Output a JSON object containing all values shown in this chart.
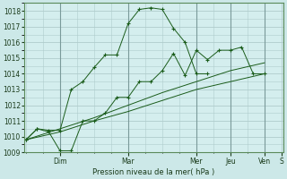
{
  "xlabel": "Pression niveau de la mer( hPa )",
  "background_color": "#cce8e8",
  "plot_bg_color": "#d4eeee",
  "grid_color": "#b0cccc",
  "line_color": "#1a5c1a",
  "ylim": [
    1009,
    1018.5
  ],
  "xlim": [
    -0.05,
    7.55
  ],
  "series": {
    "line1_x": [
      0,
      0.33,
      0.67,
      1.0,
      1.33,
      1.67,
      2.0,
      2.33,
      2.67,
      3.0,
      3.33,
      3.67,
      4.0,
      4.33,
      4.67,
      5.0,
      5.33,
      5.67,
      6.0,
      6.33,
      6.67,
      7.0
    ],
    "line1_y": [
      1009.8,
      1010.5,
      1010.4,
      1010.4,
      1013.0,
      1013.5,
      1014.4,
      1015.2,
      1015.2,
      1017.2,
      1018.1,
      1018.2,
      1018.1,
      1016.9,
      1016.0,
      1014.0,
      1014.0,
      null,
      null,
      null,
      null,
      null
    ],
    "line2_x": [
      0,
      0.33,
      0.67,
      1.0,
      1.33,
      1.67,
      2.0,
      2.33,
      2.67,
      3.0,
      3.33,
      3.67,
      4.0,
      4.33,
      4.67,
      5.0,
      5.33,
      5.67,
      6.0,
      6.33,
      6.67,
      7.0
    ],
    "line2_y": [
      1009.8,
      1010.5,
      1010.3,
      1009.1,
      1009.1,
      1011.0,
      1011.0,
      1011.5,
      1012.5,
      1012.5,
      1013.5,
      1013.5,
      1014.2,
      1015.3,
      1013.9,
      1015.5,
      1014.9,
      1015.5,
      1015.5,
      1015.7,
      1014.0,
      1014.0
    ],
    "line3_x": [
      0,
      1.0,
      2.0,
      3.0,
      4.0,
      5.0,
      6.0,
      7.0
    ],
    "line3_y": [
      1009.8,
      1010.5,
      1011.2,
      1012.0,
      1012.8,
      1013.5,
      1014.2,
      1014.7
    ],
    "line4_x": [
      0,
      1.0,
      2.0,
      3.0,
      4.0,
      5.0,
      6.0,
      7.0
    ],
    "line4_y": [
      1009.8,
      1010.3,
      1011.0,
      1011.6,
      1012.3,
      1013.0,
      1013.5,
      1014.0
    ]
  },
  "day_positions": [
    1.0,
    3.0,
    5.0,
    6.0,
    7.0,
    7.5
  ],
  "day_labels": [
    "Dim",
    "Mar",
    "Mer",
    "Jeu",
    "Ven",
    "S"
  ],
  "yticks": [
    1009,
    1010,
    1011,
    1012,
    1013,
    1014,
    1015,
    1016,
    1017,
    1018
  ]
}
